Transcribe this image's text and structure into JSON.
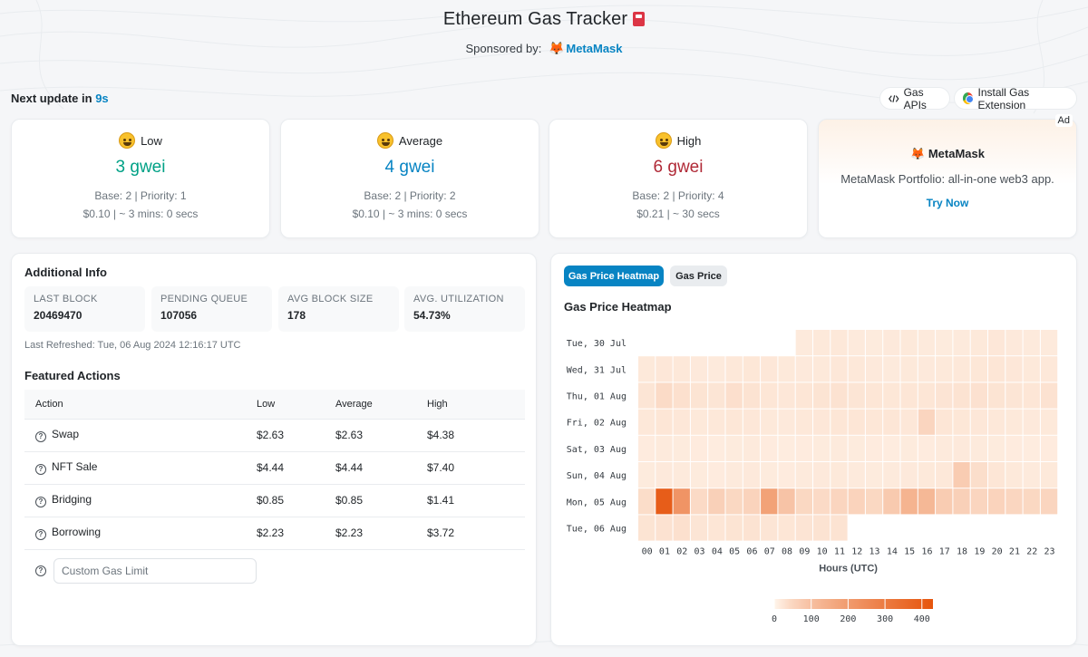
{
  "header": {
    "title": "Ethereum Gas Tracker",
    "sponsor_prefix": "Sponsored by:",
    "sponsor_name": "MetaMask"
  },
  "update": {
    "prefix": "Next update in",
    "seconds": "9s"
  },
  "top_links": {
    "gas_apis": "Gas APIs",
    "install_extension": "Install Gas Extension"
  },
  "gas_cards": [
    {
      "label": "Low",
      "gwei": "3 gwei",
      "base_priority": "Base: 2 | Priority: 1",
      "cost_time": "$0.10 | ~ 3 mins: 0 secs",
      "color": "#00a186"
    },
    {
      "label": "Average",
      "gwei": "4 gwei",
      "base_priority": "Base: 2 | Priority: 2",
      "cost_time": "$0.10 | ~ 3 mins: 0 secs",
      "color": "#0784c3"
    },
    {
      "label": "High",
      "gwei": "6 gwei",
      "base_priority": "Base: 2 | Priority: 4",
      "cost_time": "$0.21 | ~ 30 secs",
      "color": "#b02a37"
    }
  ],
  "ad": {
    "badge": "Ad",
    "brand": "MetaMask",
    "description": "MetaMask Portfolio: all-in-one web3 app.",
    "cta": "Try Now"
  },
  "additional_info": {
    "heading": "Additional Info",
    "stats": [
      {
        "label": "LAST BLOCK",
        "value": "20469470"
      },
      {
        "label": "PENDING QUEUE",
        "value": "107056"
      },
      {
        "label": "AVG BLOCK SIZE",
        "value": "178"
      },
      {
        "label": "AVG. UTILIZATION",
        "value": "54.73%"
      }
    ],
    "last_refreshed": "Last Refreshed: Tue, 06 Aug 2024 12:16:17 UTC"
  },
  "featured_actions": {
    "heading": "Featured Actions",
    "columns": [
      "Action",
      "Low",
      "Average",
      "High"
    ],
    "rows": [
      {
        "action": "Swap",
        "low": "$2.63",
        "average": "$2.63",
        "high": "$4.38"
      },
      {
        "action": "NFT Sale",
        "low": "$4.44",
        "average": "$4.44",
        "high": "$7.40"
      },
      {
        "action": "Bridging",
        "low": "$0.85",
        "average": "$0.85",
        "high": "$1.41"
      },
      {
        "action": "Borrowing",
        "low": "$2.23",
        "average": "$2.23",
        "high": "$3.72"
      }
    ],
    "custom_placeholder": "Custom Gas Limit"
  },
  "heatmap_panel": {
    "tabs": [
      "Gas Price Heatmap",
      "Gas Price"
    ],
    "active_tab": "Gas Price Heatmap"
  },
  "chart_data": {
    "type": "heatmap",
    "title": "Gas Price Heatmap",
    "xlabel": "Hours (UTC)",
    "x": [
      "00",
      "01",
      "02",
      "03",
      "04",
      "05",
      "06",
      "07",
      "08",
      "09",
      "10",
      "11",
      "12",
      "13",
      "14",
      "15",
      "16",
      "17",
      "18",
      "19",
      "20",
      "21",
      "22",
      "23"
    ],
    "y": [
      "Tue, 30 Jul",
      "Wed, 31 Jul",
      "Thu, 01 Aug",
      "Fri, 02 Aug",
      "Sat, 03 Aug",
      "Sun, 04 Aug",
      "Mon, 05 Aug",
      "Tue, 06 Aug"
    ],
    "values": [
      [
        null,
        null,
        null,
        null,
        null,
        null,
        null,
        null,
        null,
        12,
        14,
        15,
        12,
        11,
        13,
        14,
        12,
        11,
        12,
        14,
        16,
        13,
        12,
        12
      ],
      [
        14,
        16,
        15,
        13,
        12,
        15,
        17,
        16,
        14,
        13,
        14,
        16,
        15,
        13,
        12,
        14,
        13,
        14,
        15,
        17,
        18,
        16,
        14,
        15
      ],
      [
        20,
        38,
        28,
        22,
        20,
        30,
        24,
        18,
        16,
        19,
        22,
        25,
        20,
        18,
        17,
        19,
        18,
        21,
        24,
        26,
        22,
        20,
        19,
        25
      ],
      [
        15,
        18,
        16,
        14,
        15,
        17,
        16,
        14,
        13,
        15,
        16,
        18,
        19,
        17,
        18,
        16,
        50,
        18,
        17,
        16,
        15,
        14,
        13,
        14
      ],
      [
        10,
        12,
        11,
        10,
        9,
        11,
        12,
        10,
        9,
        10,
        11,
        12,
        11,
        10,
        9,
        11,
        10,
        12,
        13,
        12,
        11,
        10,
        9,
        10
      ],
      [
        11,
        13,
        12,
        11,
        10,
        12,
        13,
        11,
        10,
        12,
        13,
        14,
        12,
        11,
        12,
        13,
        14,
        15,
        70,
        32,
        18,
        14,
        12,
        14
      ],
      [
        35,
        400,
        220,
        40,
        60,
        45,
        55,
        180,
        90,
        45,
        40,
        50,
        55,
        45,
        75,
        130,
        120,
        70,
        60,
        50,
        55,
        48,
        45,
        50
      ],
      [
        22,
        25,
        28,
        20,
        18,
        22,
        24,
        20,
        19,
        21,
        23,
        24,
        null,
        null,
        null,
        null,
        null,
        null,
        null,
        null,
        null,
        null,
        null,
        null
      ]
    ],
    "colorbar": {
      "ticks": [
        0,
        100,
        200,
        300,
        400
      ],
      "range": [
        0,
        430
      ],
      "colors": [
        "#fff5eb",
        "#e6550d"
      ]
    }
  }
}
